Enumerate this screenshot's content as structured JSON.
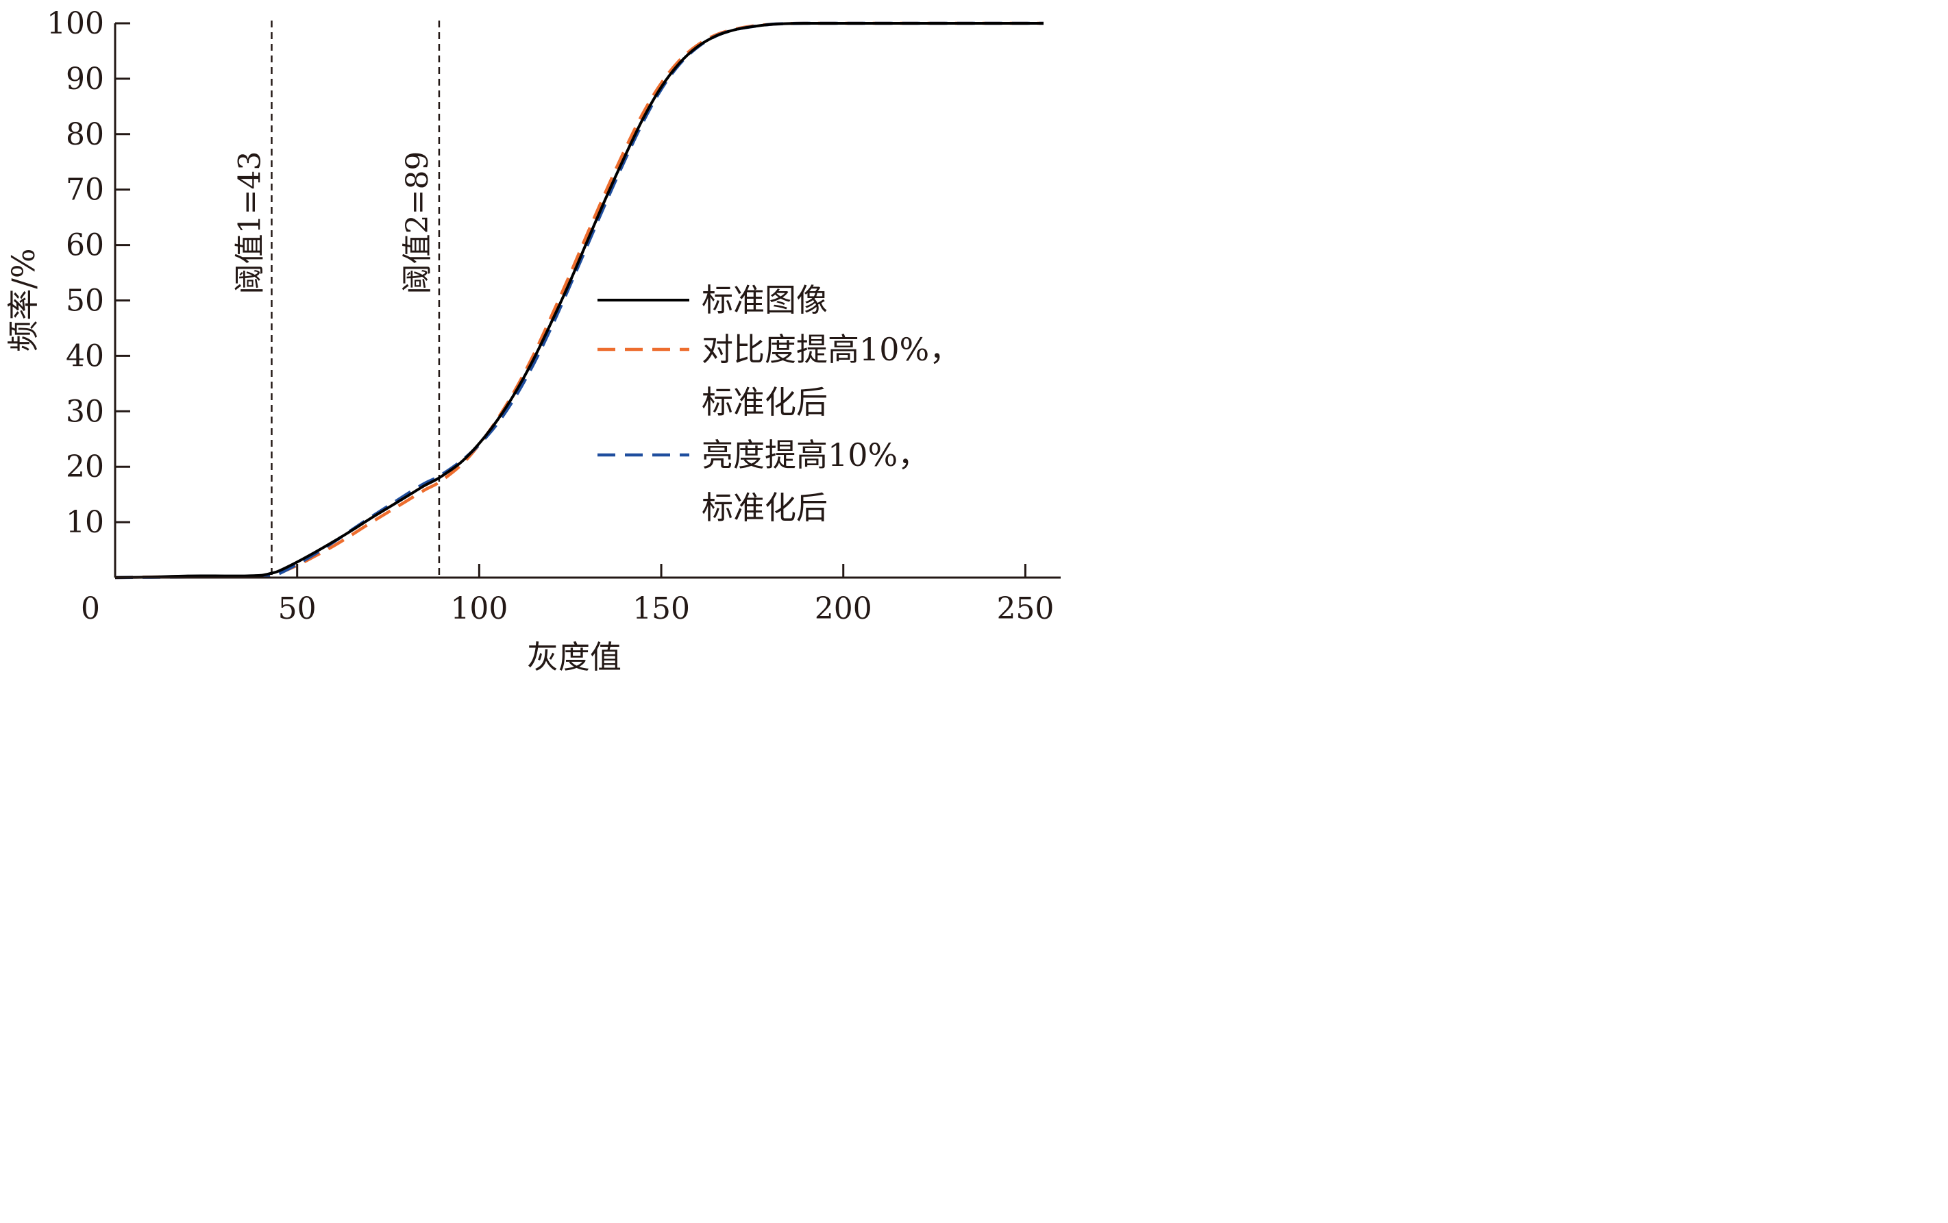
{
  "chart_data": {
    "type": "line",
    "xlabel": "灰度值",
    "ylabel": "频率/%",
    "xlim": [
      0,
      255
    ],
    "ylim": [
      0,
      100
    ],
    "xticks": [
      0,
      50,
      100,
      150,
      200,
      250
    ],
    "yticks": [
      10,
      20,
      30,
      40,
      50,
      60,
      70,
      80,
      90,
      100
    ],
    "x_tick_labels": [
      "0",
      "50",
      "100",
      "150",
      "200",
      "250"
    ],
    "y_tick_labels": [
      "10",
      "20",
      "30",
      "40",
      "50",
      "60",
      "70",
      "80",
      "90",
      "100"
    ],
    "grid": false,
    "legend_position": "right",
    "annotations": [
      {
        "text": "阈值1=43",
        "x": 43,
        "style": "dashed-vertical"
      },
      {
        "text": "阈值2=89",
        "x": 89,
        "style": "dashed-vertical"
      }
    ],
    "series": [
      {
        "name": "标准图像",
        "color": "#000000",
        "dash": "solid",
        "x": [
          0,
          10,
          20,
          30,
          35,
          40,
          43,
          45,
          50,
          55,
          60,
          65,
          70,
          75,
          80,
          85,
          89,
          95,
          100,
          105,
          110,
          115,
          120,
          125,
          130,
          135,
          140,
          145,
          150,
          155,
          160,
          165,
          170,
          175,
          180,
          185,
          190,
          200,
          220,
          240,
          255
        ],
        "y": [
          0,
          0.1,
          0.3,
          0.3,
          0.3,
          0.4,
          0.8,
          1.2,
          2.8,
          4.6,
          6.5,
          8.5,
          10.6,
          12.6,
          14.6,
          16.6,
          18.0,
          20.8,
          24.2,
          28.4,
          33.5,
          39.5,
          46.3,
          53.5,
          61.2,
          68.8,
          76.0,
          82.8,
          88.5,
          92.8,
          95.8,
          97.7,
          98.8,
          99.4,
          99.8,
          99.95,
          100,
          100,
          100,
          100,
          100
        ]
      },
      {
        "name": "对比度提高10%，标准化后",
        "legend_lines": [
          "对比度提高10%，",
          "标准化后"
        ],
        "color": "#ED6D2E",
        "dash": "dashed",
        "x": [
          0,
          10,
          20,
          30,
          35,
          40,
          43,
          45,
          50,
          55,
          60,
          65,
          70,
          75,
          80,
          85,
          89,
          95,
          100,
          105,
          110,
          115,
          120,
          125,
          130,
          135,
          140,
          145,
          150,
          155,
          160,
          165,
          170,
          175,
          180,
          185,
          190,
          200,
          220,
          240,
          255
        ],
        "y": [
          0,
          0.1,
          0.2,
          0.2,
          0.2,
          0.3,
          0.5,
          0.8,
          2.2,
          3.9,
          5.7,
          7.7,
          9.8,
          11.8,
          13.8,
          15.8,
          17.2,
          20.3,
          24.0,
          28.6,
          34.0,
          40.3,
          47.4,
          54.8,
          62.5,
          70.0,
          77.2,
          83.8,
          89.2,
          93.3,
          96.1,
          97.9,
          98.9,
          99.5,
          99.8,
          99.95,
          100,
          100,
          100,
          100,
          100
        ]
      },
      {
        "name": "亮度提高10%，标准化后",
        "legend_lines": [
          "亮度提高10%，",
          "标准化后"
        ],
        "color": "#1F4E9E",
        "dash": "dashed",
        "x": [
          0,
          10,
          20,
          30,
          35,
          40,
          43,
          45,
          50,
          55,
          60,
          65,
          70,
          75,
          80,
          85,
          89,
          95,
          100,
          105,
          110,
          115,
          120,
          125,
          130,
          135,
          140,
          145,
          150,
          155,
          160,
          165,
          170,
          175,
          180,
          185,
          190,
          200,
          220,
          240,
          255
        ],
        "y": [
          0,
          0.05,
          0.1,
          0.1,
          0.1,
          0.2,
          0.4,
          0.7,
          2.4,
          4.3,
          6.4,
          8.6,
          10.8,
          12.9,
          15.0,
          17.0,
          18.3,
          21.0,
          24.0,
          27.8,
          32.7,
          38.6,
          45.4,
          52.8,
          60.4,
          68.0,
          75.3,
          82.2,
          88.1,
          92.6,
          95.7,
          97.7,
          98.8,
          99.4,
          99.8,
          99.95,
          100,
          100,
          100,
          100,
          100
        ]
      }
    ]
  }
}
